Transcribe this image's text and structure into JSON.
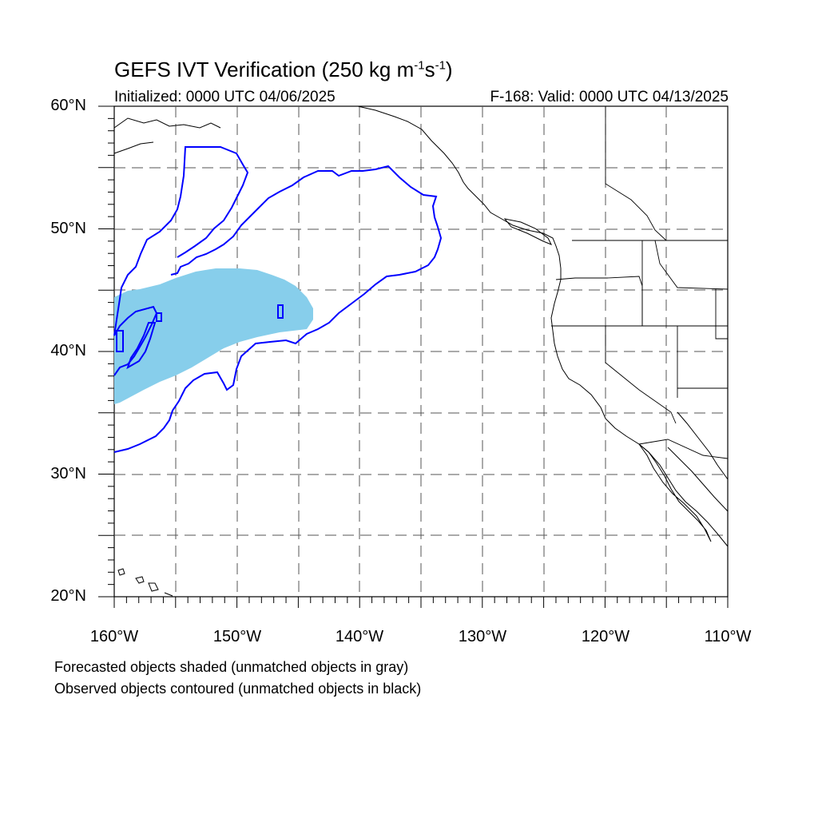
{
  "title": {
    "main": "GEFS IVT Verification (250 kg m",
    "exp1": "-1",
    "mid": "s",
    "exp2": "-1",
    "close": ")"
  },
  "initialized_label": "Initialized: 0000 UTC 04/06/2025",
  "valid_label": "F-168: Valid: 0000 UTC 04/13/2025",
  "lat_labels": [
    "60°N",
    "50°N",
    "40°N",
    "30°N",
    "20°N"
  ],
  "lon_labels": [
    "160°W",
    "150°W",
    "140°W",
    "130°W",
    "120°W",
    "110°W"
  ],
  "footnotes": {
    "forecast": "Forecasted objects shaded (unmatched objects in gray)",
    "observed": "Observed objects contoured (unmatched objects in black)"
  },
  "map": {
    "lon_range": [
      -160,
      -110
    ],
    "lat_range": [
      20,
      60
    ],
    "colors": {
      "forecast_fill": "#87ceeb",
      "observed_contour": "#0000ff",
      "coastline": "#000000",
      "grid": "#555555"
    }
  }
}
